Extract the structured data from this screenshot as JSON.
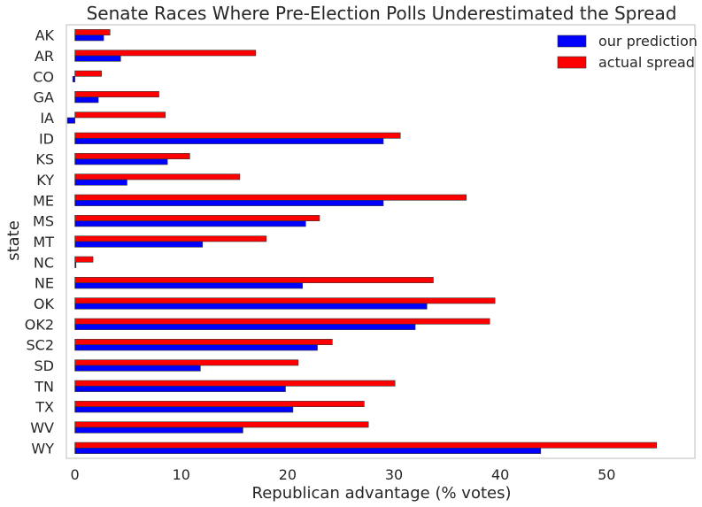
{
  "chart_data": {
    "type": "bar",
    "orientation": "horizontal",
    "title": "Senate Races Where Pre-Election Polls Underestimated the Spread",
    "xlabel": "Republican advantage (% votes)",
    "ylabel": "state",
    "xlim": [
      -0.8,
      58.3
    ],
    "xticks": [
      0,
      10,
      20,
      30,
      40,
      50
    ],
    "grid": false,
    "legend_position": "top-right",
    "categories": [
      "AK",
      "AR",
      "CO",
      "GA",
      "IA",
      "ID",
      "KS",
      "KY",
      "ME",
      "MS",
      "MT",
      "NC",
      "NE",
      "OK",
      "OK2",
      "SC2",
      "SD",
      "TN",
      "TX",
      "WV",
      "WY"
    ],
    "series": [
      {
        "name": "our prediction",
        "color": "#0000ff",
        "values": [
          2.7,
          4.3,
          -0.2,
          2.2,
          -0.7,
          29.0,
          8.7,
          4.9,
          29.0,
          21.7,
          12.0,
          0.1,
          21.4,
          33.1,
          32.0,
          22.8,
          11.8,
          19.8,
          20.5,
          15.8,
          43.8
        ]
      },
      {
        "name": "actual spread",
        "color": "#ff0000",
        "values": [
          3.3,
          17.0,
          2.5,
          7.9,
          8.5,
          30.6,
          10.8,
          15.5,
          36.8,
          23.0,
          18.0,
          1.7,
          33.7,
          39.5,
          39.0,
          24.2,
          21.0,
          30.1,
          27.2,
          27.6,
          54.7
        ]
      }
    ]
  }
}
